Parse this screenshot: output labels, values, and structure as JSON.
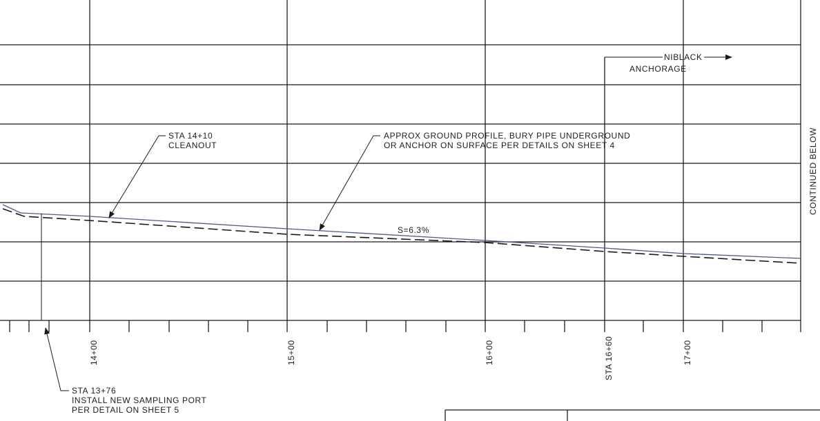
{
  "drawing": {
    "side_note": "CONTINUED BELOW",
    "stations": [
      "14+00",
      "15+00",
      "16+00",
      "STA 16+60",
      "17+00"
    ],
    "slope_label": "S=6.3%",
    "callouts": {
      "cleanout": [
        "STA 14+10",
        "CLEANOUT"
      ],
      "ground_profile": [
        "APPROX GROUND PROFILE, BURY PIPE UNDERGROUND",
        "OR ANCHOR ON SURFACE PER DETAILS ON SHEET 4"
      ],
      "niblack": [
        "NIBLACK",
        "ANCHORAGE"
      ],
      "sampling_port": [
        "STA 13+76",
        "INSTALL NEW SAMPLING PORT",
        "PER DETAIL ON SHEET 5"
      ]
    },
    "colors": {
      "line": "#1a1a1a",
      "profile_blue": "#4a5a8a"
    }
  }
}
